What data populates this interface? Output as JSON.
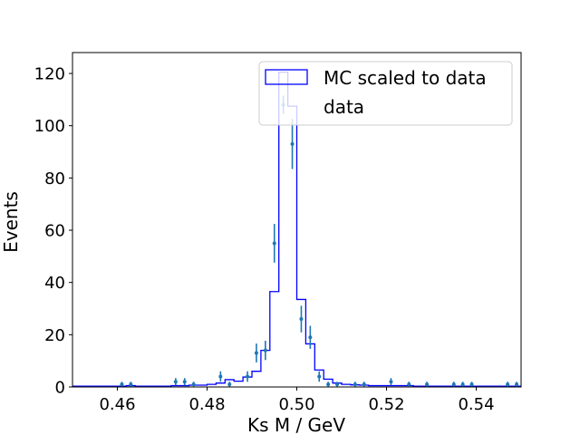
{
  "chart_data": {
    "type": "histogram",
    "title": "",
    "xlabel": "Ks M / GeV",
    "ylabel": "Events",
    "xlim": [
      0.45,
      0.55
    ],
    "ylim": [
      0,
      128
    ],
    "xticks": [
      0.46,
      0.48,
      0.5,
      0.52,
      0.54
    ],
    "xtick_labels": [
      "0.46",
      "0.48",
      "0.50",
      "0.52",
      "0.54"
    ],
    "yticks": [
      0,
      20,
      40,
      60,
      80,
      100,
      120
    ],
    "ytick_labels": [
      "0",
      "20",
      "40",
      "60",
      "80",
      "100",
      "120"
    ],
    "grid": false,
    "legend_position": "top-right",
    "bin_edges": [
      0.45,
      0.452,
      0.454,
      0.456,
      0.458,
      0.46,
      0.462,
      0.464,
      0.466,
      0.468,
      0.47,
      0.472,
      0.474,
      0.476,
      0.478,
      0.48,
      0.482,
      0.484,
      0.486,
      0.488,
      0.49,
      0.492,
      0.494,
      0.496,
      0.498,
      0.5,
      0.502,
      0.504,
      0.506,
      0.508,
      0.51,
      0.512,
      0.514,
      0.516,
      0.518,
      0.52,
      0.522,
      0.524,
      0.526,
      0.528,
      0.53,
      0.532,
      0.534,
      0.536,
      0.538,
      0.54,
      0.542,
      0.544,
      0.546,
      0.548,
      0.55
    ],
    "series": [
      {
        "name": "MC scaled to data",
        "kind": "step",
        "color": "#0000ff",
        "values": [
          0.3,
          0.3,
          0.3,
          0.3,
          0.3,
          0.3,
          0.5,
          0.3,
          0.3,
          0.3,
          0.3,
          0.5,
          0.5,
          0.7,
          0.7,
          1.0,
          1.5,
          2.8,
          2.2,
          3.8,
          6.0,
          14.0,
          36.5,
          120.5,
          107.5,
          33.5,
          16.5,
          6.5,
          3.0,
          1.5,
          1.0,
          0.8,
          0.7,
          0.5,
          0.5,
          0.5,
          0.5,
          0.5,
          0.3,
          0.3,
          0.3,
          0.3,
          0.3,
          0.3,
          0.3,
          0.3,
          0.3,
          0.3,
          0.3,
          0.3
        ]
      },
      {
        "name": "data",
        "kind": "errorbar",
        "color": "#1f77b4",
        "x": [
          0.461,
          0.463,
          0.473,
          0.475,
          0.477,
          0.483,
          0.485,
          0.489,
          0.491,
          0.493,
          0.495,
          0.497,
          0.499,
          0.501,
          0.503,
          0.505,
          0.507,
          0.509,
          0.513,
          0.515,
          0.521,
          0.525,
          0.529,
          0.535,
          0.537,
          0.539,
          0.547,
          0.549
        ],
        "y": [
          1,
          1,
          2,
          2,
          1,
          4,
          1,
          4,
          13,
          14,
          55,
          108,
          93,
          26,
          19,
          4,
          1,
          1,
          1,
          1,
          2,
          1,
          1,
          1,
          1,
          1,
          1,
          1
        ],
        "yerr": [
          1,
          1,
          1.4,
          1.4,
          1,
          2,
          1,
          2,
          3.6,
          3.7,
          7.4,
          3.5,
          9.6,
          5.1,
          4.4,
          2,
          1,
          1,
          1,
          1,
          1.4,
          1,
          1,
          1,
          1,
          1,
          1,
          1
        ]
      }
    ]
  }
}
